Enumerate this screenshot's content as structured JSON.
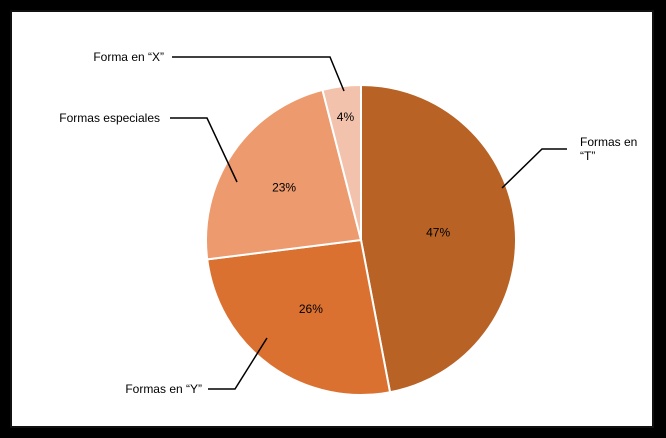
{
  "chart_data": {
    "type": "pie",
    "title": "",
    "slices": [
      {
        "label": "Formas en “T”",
        "value": 47,
        "display": "47%",
        "color": "#b86225"
      },
      {
        "label": "Formas en “Y”",
        "value": 26,
        "display": "26%",
        "color": "#db7130"
      },
      {
        "label": "Formas especiales",
        "value": 23,
        "display": "23%",
        "color": "#ec9a6e"
      },
      {
        "label": "Forma en “X”",
        "value": 4,
        "display": "4%",
        "color": "#f2c2ad"
      }
    ],
    "start": "top",
    "direction": "clockwise"
  }
}
